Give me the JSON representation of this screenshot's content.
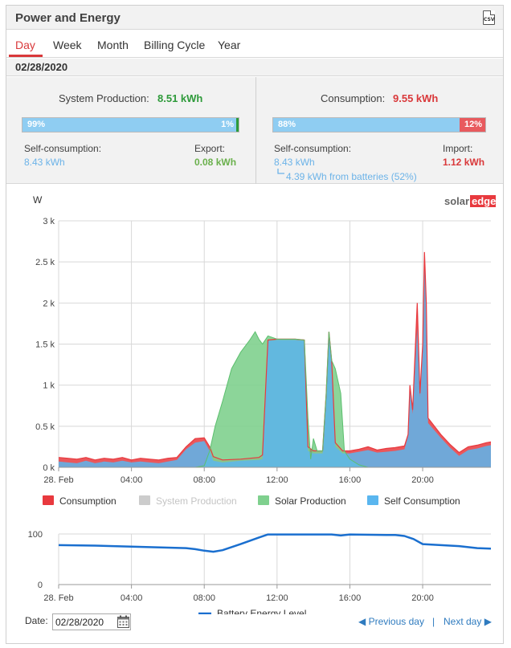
{
  "header": {
    "title": "Power and Energy",
    "csv_label": "CSV"
  },
  "tabs": [
    {
      "label": "Day",
      "active": true
    },
    {
      "label": "Week",
      "active": false
    },
    {
      "label": "Month",
      "active": false
    },
    {
      "label": "Billing Cycle",
      "active": false
    },
    {
      "label": "Year",
      "active": false
    }
  ],
  "date_display": "02/28/2020",
  "production": {
    "title": "System Production:",
    "value": "8.51 kWh",
    "self_pct": "99%",
    "export_pct": "1%",
    "self_fraction": 0.99,
    "self_label": "Self-consumption:",
    "self_value": "8.43 kWh",
    "export_label": "Export:",
    "export_value": "0.08 kWh"
  },
  "consumption": {
    "title": "Consumption:",
    "value": "9.55 kWh",
    "self_pct": "88%",
    "import_pct": "12%",
    "self_fraction": 0.88,
    "self_label": "Self-consumption:",
    "self_value": "8.43 kWh",
    "batteries_note": "4.39 kWh from batteries (52%)",
    "import_label": "Import:",
    "import_value": "1.12 kWh"
  },
  "brand": {
    "part1": "solar",
    "part2": "edge"
  },
  "colors": {
    "consumption": "#e8393e",
    "system_production": "#cccccc",
    "solar_production": "#7fd08e",
    "self_consumption": "#5ab6ef",
    "overlap": "#8aa3d6",
    "battery_line": "#1a6fcf",
    "production_value": "#2e9a3a",
    "consumption_value": "#d9383a"
  },
  "chart_data": [
    {
      "type": "area",
      "ylabel": "W",
      "ylim": [
        0,
        3000
      ],
      "y_ticks": [
        {
          "value": 0,
          "label": "0 k"
        },
        {
          "value": 500,
          "label": "0.5 k"
        },
        {
          "value": 1000,
          "label": "1 k"
        },
        {
          "value": 1500,
          "label": "1.5 k"
        },
        {
          "value": 2000,
          "label": "2 k"
        },
        {
          "value": 2500,
          "label": "2.5 k"
        },
        {
          "value": 3000,
          "label": "3 k"
        }
      ],
      "x_range_hours": [
        0,
        23.75
      ],
      "x_ticks": [
        {
          "hour": 0,
          "label": "28. Feb"
        },
        {
          "hour": 4,
          "label": "04:00"
        },
        {
          "hour": 8,
          "label": "08:00"
        },
        {
          "hour": 12,
          "label": "12:00"
        },
        {
          "hour": 16,
          "label": "16:00"
        },
        {
          "hour": 20,
          "label": "20:00"
        }
      ],
      "grid": true,
      "legend_position": "bottom",
      "series": [
        {
          "name": "Consumption",
          "points": [
            [
              0,
              120
            ],
            [
              0.5,
              110
            ],
            [
              1,
              100
            ],
            [
              1.5,
              120
            ],
            [
              2,
              90
            ],
            [
              2.5,
              110
            ],
            [
              3,
              100
            ],
            [
              3.5,
              120
            ],
            [
              4,
              90
            ],
            [
              4.5,
              110
            ],
            [
              5,
              100
            ],
            [
              5.5,
              90
            ],
            [
              6,
              110
            ],
            [
              6.5,
              120
            ],
            [
              7,
              250
            ],
            [
              7.5,
              350
            ],
            [
              8,
              360
            ],
            [
              8.3,
              250
            ],
            [
              8.5,
              130
            ],
            [
              9,
              90
            ],
            [
              10,
              100
            ],
            [
              11,
              120
            ],
            [
              11.2,
              150
            ],
            [
              11.5,
              1550
            ],
            [
              12,
              1560
            ],
            [
              13,
              1560
            ],
            [
              13.5,
              1550
            ],
            [
              13.7,
              250
            ],
            [
              14,
              200
            ],
            [
              14.5,
              200
            ],
            [
              14.7,
              900
            ],
            [
              14.85,
              1650
            ],
            [
              15,
              1300
            ],
            [
              15.2,
              300
            ],
            [
              15.6,
              200
            ],
            [
              16,
              200
            ],
            [
              16.5,
              220
            ],
            [
              17,
              250
            ],
            [
              17.5,
              210
            ],
            [
              18,
              230
            ],
            [
              18.5,
              240
            ],
            [
              19,
              260
            ],
            [
              19.2,
              400
            ],
            [
              19.3,
              1000
            ],
            [
              19.45,
              700
            ],
            [
              19.7,
              2000
            ],
            [
              19.85,
              900
            ],
            [
              20,
              1500
            ],
            [
              20.1,
              2620
            ],
            [
              20.2,
              2000
            ],
            [
              20.3,
              600
            ],
            [
              21,
              400
            ],
            [
              21.5,
              280
            ],
            [
              22,
              180
            ],
            [
              22.5,
              250
            ],
            [
              23,
              270
            ],
            [
              23.5,
              300
            ],
            [
              23.75,
              310
            ]
          ]
        },
        {
          "name": "System Production",
          "hidden": true,
          "points": []
        },
        {
          "name": "Solar Production",
          "points": [
            [
              0,
              0
            ],
            [
              7.5,
              0
            ],
            [
              8,
              20
            ],
            [
              8.3,
              200
            ],
            [
              8.6,
              500
            ],
            [
              9,
              800
            ],
            [
              9.5,
              1200
            ],
            [
              10,
              1400
            ],
            [
              10.5,
              1550
            ],
            [
              10.8,
              1650
            ],
            [
              11,
              1560
            ],
            [
              11.2,
              1500
            ],
            [
              11.5,
              1600
            ],
            [
              12,
              1560
            ],
            [
              13,
              1560
            ],
            [
              13.5,
              1550
            ],
            [
              13.7,
              600
            ],
            [
              13.85,
              100
            ],
            [
              14,
              350
            ],
            [
              14.2,
              200
            ],
            [
              14.5,
              200
            ],
            [
              14.7,
              900
            ],
            [
              14.85,
              1650
            ],
            [
              15,
              1300
            ],
            [
              15.2,
              1200
            ],
            [
              15.5,
              900
            ],
            [
              15.7,
              200
            ],
            [
              16,
              100
            ],
            [
              16.5,
              30
            ],
            [
              17,
              0
            ],
            [
              23.75,
              0
            ]
          ]
        },
        {
          "name": "Self Consumption",
          "points": [
            [
              0,
              70
            ],
            [
              0.5,
              60
            ],
            [
              1,
              50
            ],
            [
              1.5,
              80
            ],
            [
              2,
              50
            ],
            [
              2.5,
              70
            ],
            [
              3,
              60
            ],
            [
              3.5,
              80
            ],
            [
              4,
              60
            ],
            [
              4.5,
              70
            ],
            [
              5,
              60
            ],
            [
              5.5,
              50
            ],
            [
              6,
              70
            ],
            [
              6.5,
              90
            ],
            [
              7,
              220
            ],
            [
              7.5,
              300
            ],
            [
              8,
              320
            ],
            [
              8.3,
              200
            ],
            [
              8.5,
              80
            ],
            [
              9,
              60
            ],
            [
              10,
              80
            ],
            [
              11,
              90
            ],
            [
              11.2,
              100
            ],
            [
              11.5,
              1540
            ],
            [
              12,
              1550
            ],
            [
              13,
              1550
            ],
            [
              13.5,
              1540
            ],
            [
              13.7,
              200
            ],
            [
              14,
              170
            ],
            [
              14.5,
              170
            ],
            [
              14.7,
              880
            ],
            [
              14.85,
              1630
            ],
            [
              15,
              1280
            ],
            [
              15.2,
              250
            ],
            [
              15.6,
              170
            ],
            [
              16,
              170
            ],
            [
              16.5,
              190
            ],
            [
              17,
              210
            ],
            [
              17.5,
              180
            ],
            [
              18,
              190
            ],
            [
              18.5,
              200
            ],
            [
              19,
              220
            ],
            [
              19.2,
              380
            ],
            [
              19.3,
              960
            ],
            [
              19.45,
              650
            ],
            [
              19.7,
              1700
            ],
            [
              19.85,
              850
            ],
            [
              20,
              1400
            ],
            [
              20.1,
              2560
            ],
            [
              20.2,
              1900
            ],
            [
              20.3,
              540
            ],
            [
              21,
              360
            ],
            [
              21.5,
              240
            ],
            [
              22,
              140
            ],
            [
              22.5,
              210
            ],
            [
              23,
              230
            ],
            [
              23.5,
              260
            ],
            [
              23.75,
              270
            ]
          ]
        }
      ]
    },
    {
      "type": "line",
      "ylim": [
        0,
        100
      ],
      "y_ticks": [
        {
          "value": 0,
          "label": "0"
        },
        {
          "value": 100,
          "label": "100"
        }
      ],
      "x_range_hours": [
        0,
        23.75
      ],
      "x_ticks": [
        {
          "hour": 0,
          "label": "28. Feb"
        },
        {
          "hour": 4,
          "label": "04:00"
        },
        {
          "hour": 8,
          "label": "08:00"
        },
        {
          "hour": 12,
          "label": "12:00"
        },
        {
          "hour": 16,
          "label": "16:00"
        },
        {
          "hour": 20,
          "label": "20:00"
        }
      ],
      "grid": true,
      "legend_position": "bottom",
      "series": [
        {
          "name": "Battery Energy Level",
          "points": [
            [
              0,
              78
            ],
            [
              2,
              77
            ],
            [
              4,
              75
            ],
            [
              6,
              73
            ],
            [
              7,
              72
            ],
            [
              7.5,
              70
            ],
            [
              8,
              67
            ],
            [
              8.5,
              65
            ],
            [
              9,
              68
            ],
            [
              10,
              80
            ],
            [
              11,
              93
            ],
            [
              11.5,
              99
            ],
            [
              12,
              99
            ],
            [
              14,
              99
            ],
            [
              15,
              99
            ],
            [
              15.5,
              97
            ],
            [
              16,
              99
            ],
            [
              18,
              98
            ],
            [
              18.5,
              98
            ],
            [
              19,
              96
            ],
            [
              19.5,
              90
            ],
            [
              20,
              80
            ],
            [
              21,
              78
            ],
            [
              22,
              76
            ],
            [
              23,
              72
            ],
            [
              23.75,
              71
            ]
          ]
        }
      ]
    }
  ],
  "footer": {
    "date_label": "Date:",
    "date_value": "02/28/2020",
    "prev_label": "Previous day",
    "next_label": "Next day",
    "separator": "|"
  }
}
